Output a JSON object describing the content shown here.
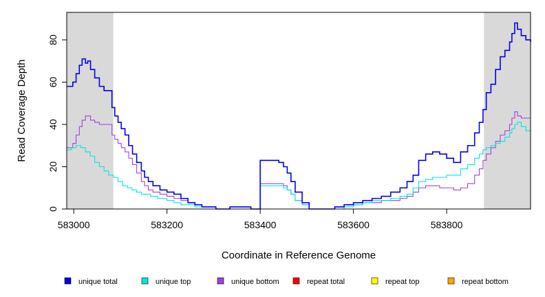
{
  "chart_data": {
    "type": "line",
    "xlabel": "Coordinate in Reference Genome",
    "ylabel": "Read Coverage Depth",
    "xlim": [
      582985,
      583980
    ],
    "ylim": [
      0,
      93
    ],
    "x_ticks": [
      583000,
      583200,
      583400,
      583600,
      583800
    ],
    "x_tick_labels": [
      "583000",
      "583200",
      "583400",
      "583600",
      "583800"
    ],
    "y_ticks": [
      0,
      20,
      40,
      60,
      80
    ],
    "y_tick_labels": [
      "0",
      "20",
      "40",
      "60",
      "80"
    ],
    "shaded_regions": [
      [
        582985,
        583085
      ],
      [
        583880,
        583980
      ]
    ],
    "shade_color": "#d9d9d9",
    "grid": false,
    "legend_position": "bottom",
    "series": [
      {
        "name": "unique total",
        "color": "#0000e6",
        "x": [
          582985,
          582998,
          583005,
          583012,
          583018,
          583025,
          583030,
          583036,
          583045,
          583055,
          583065,
          583075,
          583082,
          583088,
          583095,
          583102,
          583110,
          583118,
          583126,
          583135,
          583145,
          583152,
          583160,
          583170,
          583185,
          583200,
          583215,
          583230,
          583245,
          583260,
          583275,
          583290,
          583305,
          583320,
          583335,
          583350,
          583365,
          583380,
          583400,
          583410,
          583420,
          583440,
          583450,
          583458,
          583466,
          583475,
          583490,
          583505,
          583520,
          583540,
          583560,
          583580,
          583600,
          583620,
          583640,
          583660,
          583680,
          583700,
          583715,
          583728,
          583740,
          583755,
          583770,
          583785,
          583800,
          583815,
          583830,
          583845,
          583860,
          583870,
          583878,
          583885,
          583895,
          583905,
          583915,
          583925,
          583935,
          583940,
          583946,
          583952,
          583960,
          583970,
          583980
        ],
        "values": [
          58,
          60,
          64,
          68,
          71,
          69,
          70,
          66,
          62,
          58,
          56,
          56,
          48,
          44,
          41,
          38,
          35,
          30,
          26,
          22,
          18,
          15,
          13,
          11,
          9,
          8,
          7,
          5,
          3,
          2,
          1,
          1,
          0,
          0,
          1,
          1,
          1,
          0,
          23,
          23,
          23,
          22,
          20,
          17,
          13,
          8,
          3,
          0,
          0,
          0,
          1,
          2,
          3,
          4,
          5,
          6,
          8,
          10,
          13,
          16,
          23,
          26,
          27,
          26,
          24,
          22,
          27,
          30,
          36,
          41,
          47,
          55,
          59,
          66,
          72,
          75,
          79,
          83,
          88,
          85,
          82,
          80,
          79
        ]
      },
      {
        "name": "unique top",
        "color": "#00e5e5",
        "x": [
          582985,
          582995,
          583005,
          583015,
          583025,
          583035,
          583045,
          583055,
          583065,
          583075,
          583085,
          583095,
          583105,
          583115,
          583125,
          583135,
          583145,
          583155,
          583165,
          583180,
          583200,
          583215,
          583230,
          583245,
          583260,
          583275,
          583290,
          583305,
          583320,
          583335,
          583350,
          583365,
          583380,
          583400,
          583410,
          583420,
          583440,
          583450,
          583458,
          583466,
          583475,
          583490,
          583505,
          583520,
          583540,
          583560,
          583580,
          583600,
          583620,
          583640,
          583660,
          583680,
          583700,
          583715,
          583728,
          583740,
          583755,
          583770,
          583785,
          583800,
          583815,
          583830,
          583845,
          583860,
          583870,
          583878,
          583885,
          583895,
          583905,
          583915,
          583925,
          583935,
          583940,
          583946,
          583952,
          583960,
          583970,
          583980
        ],
        "values": [
          28,
          29,
          30,
          29,
          27,
          25,
          22,
          20,
          18,
          16,
          15,
          13,
          11,
          10,
          9,
          8,
          7,
          7,
          6,
          5,
          4,
          3,
          2,
          2,
          1,
          1,
          1,
          0,
          0,
          0,
          0,
          0,
          0,
          11,
          11,
          11,
          11,
          10,
          9,
          7,
          4,
          2,
          0,
          0,
          0,
          0,
          1,
          2,
          3,
          4,
          4,
          5,
          6,
          7,
          10,
          13,
          14,
          15,
          15,
          16,
          16,
          19,
          21,
          24,
          26,
          28,
          29,
          30,
          31,
          32,
          34,
          36,
          38,
          40,
          41,
          39,
          37,
          36
        ]
      },
      {
        "name": "unique bottom",
        "color": "#a040e0",
        "x": [
          582985,
          582998,
          583005,
          583012,
          583018,
          583025,
          583030,
          583036,
          583045,
          583055,
          583065,
          583075,
          583082,
          583088,
          583095,
          583102,
          583110,
          583118,
          583126,
          583135,
          583145,
          583152,
          583160,
          583170,
          583185,
          583200,
          583215,
          583230,
          583245,
          583260,
          583275,
          583290,
          583305,
          583320,
          583335,
          583350,
          583365,
          583380,
          583400,
          583410,
          583420,
          583440,
          583450,
          583458,
          583466,
          583475,
          583490,
          583505,
          583520,
          583540,
          583560,
          583580,
          583600,
          583620,
          583640,
          583660,
          583680,
          583700,
          583715,
          583728,
          583740,
          583755,
          583770,
          583785,
          583800,
          583815,
          583830,
          583845,
          583860,
          583870,
          583878,
          583885,
          583895,
          583905,
          583915,
          583925,
          583935,
          583940,
          583946,
          583952,
          583960,
          583970,
          583980
        ],
        "values": [
          29,
          31,
          35,
          39,
          42,
          44,
          44,
          42,
          41,
          40,
          40,
          40,
          35,
          33,
          31,
          29,
          27,
          24,
          21,
          17,
          13,
          11,
          9,
          8,
          7,
          6,
          5,
          4,
          3,
          2,
          1,
          1,
          0,
          0,
          0,
          0,
          0,
          0,
          12,
          12,
          12,
          12,
          11,
          9,
          7,
          4,
          2,
          0,
          0,
          0,
          1,
          1,
          2,
          3,
          3,
          4,
          4,
          5,
          6,
          8,
          10,
          11,
          11,
          10,
          10,
          9,
          10,
          12,
          16,
          19,
          23,
          26,
          29,
          32,
          35,
          37,
          40,
          43,
          46,
          44,
          43,
          43,
          43
        ]
      },
      {
        "name": "repeat total",
        "color": "#ff0000",
        "x": [
          582985,
          583980
        ],
        "values": [
          0,
          0
        ]
      },
      {
        "name": "repeat top",
        "color": "#ffff00",
        "x": [
          582985,
          583980
        ],
        "values": [
          0,
          0
        ]
      },
      {
        "name": "repeat bottom",
        "color": "#ffa500",
        "x": [
          582985,
          583980
        ],
        "values": [
          0,
          0
        ]
      }
    ]
  }
}
